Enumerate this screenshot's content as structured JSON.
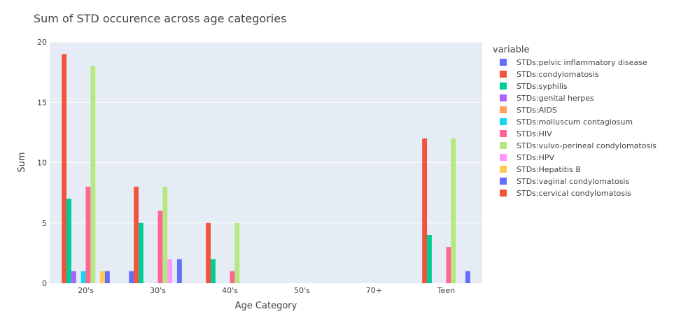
{
  "chart_data": {
    "type": "bar",
    "title": "Sum of STD occurence across age categories",
    "xlabel": "Age Category",
    "ylabel": "Sum",
    "ylim": [
      0,
      20
    ],
    "yticks": [
      0,
      5,
      10,
      15,
      20
    ],
    "grid": true,
    "legend_title": "variable",
    "legend_position": "right",
    "categories": [
      "20's",
      "30's",
      "40's",
      "50's",
      "70+",
      "Teen"
    ],
    "series": [
      {
        "name": "STDs:pelvic inflammatory disease",
        "color": "#636efa",
        "values": [
          0,
          1,
          0,
          0,
          0,
          0
        ]
      },
      {
        "name": "STDs:condylomatosis",
        "color": "#EF553B",
        "values": [
          19,
          8,
          5,
          0,
          0,
          12
        ]
      },
      {
        "name": "STDs:syphilis",
        "color": "#00cc96",
        "values": [
          7,
          5,
          2,
          0,
          0,
          4
        ]
      },
      {
        "name": "STDs:genital herpes",
        "color": "#ab63fa",
        "values": [
          1,
          0,
          0,
          0,
          0,
          0
        ]
      },
      {
        "name": "STDs:AIDS",
        "color": "#FFA15A",
        "values": [
          0,
          0,
          0,
          0,
          0,
          0
        ]
      },
      {
        "name": "STDs:molluscum contagiosum",
        "color": "#19d3f3",
        "values": [
          1,
          0,
          0,
          0,
          0,
          0
        ]
      },
      {
        "name": "STDs:HIV",
        "color": "#FF6692",
        "values": [
          8,
          6,
          1,
          0,
          0,
          3
        ]
      },
      {
        "name": "STDs:vulvo-perineal condylomatosis",
        "color": "#B6E880",
        "values": [
          18,
          8,
          5,
          0,
          0,
          12
        ]
      },
      {
        "name": "STDs:HPV",
        "color": "#FF97FF",
        "values": [
          0,
          2,
          0,
          0,
          0,
          0
        ]
      },
      {
        "name": "STDs:Hepatitis B",
        "color": "#FECB52",
        "values": [
          1,
          0,
          0,
          0,
          0,
          0
        ]
      },
      {
        "name": "STDs:vaginal condylomatosis",
        "color": "#636efa",
        "values": [
          1,
          2,
          0,
          0,
          0,
          1
        ]
      },
      {
        "name": "STDs:cervical condylomatosis",
        "color": "#EF553B",
        "values": [
          0,
          0,
          0,
          0,
          0,
          0
        ]
      }
    ]
  }
}
